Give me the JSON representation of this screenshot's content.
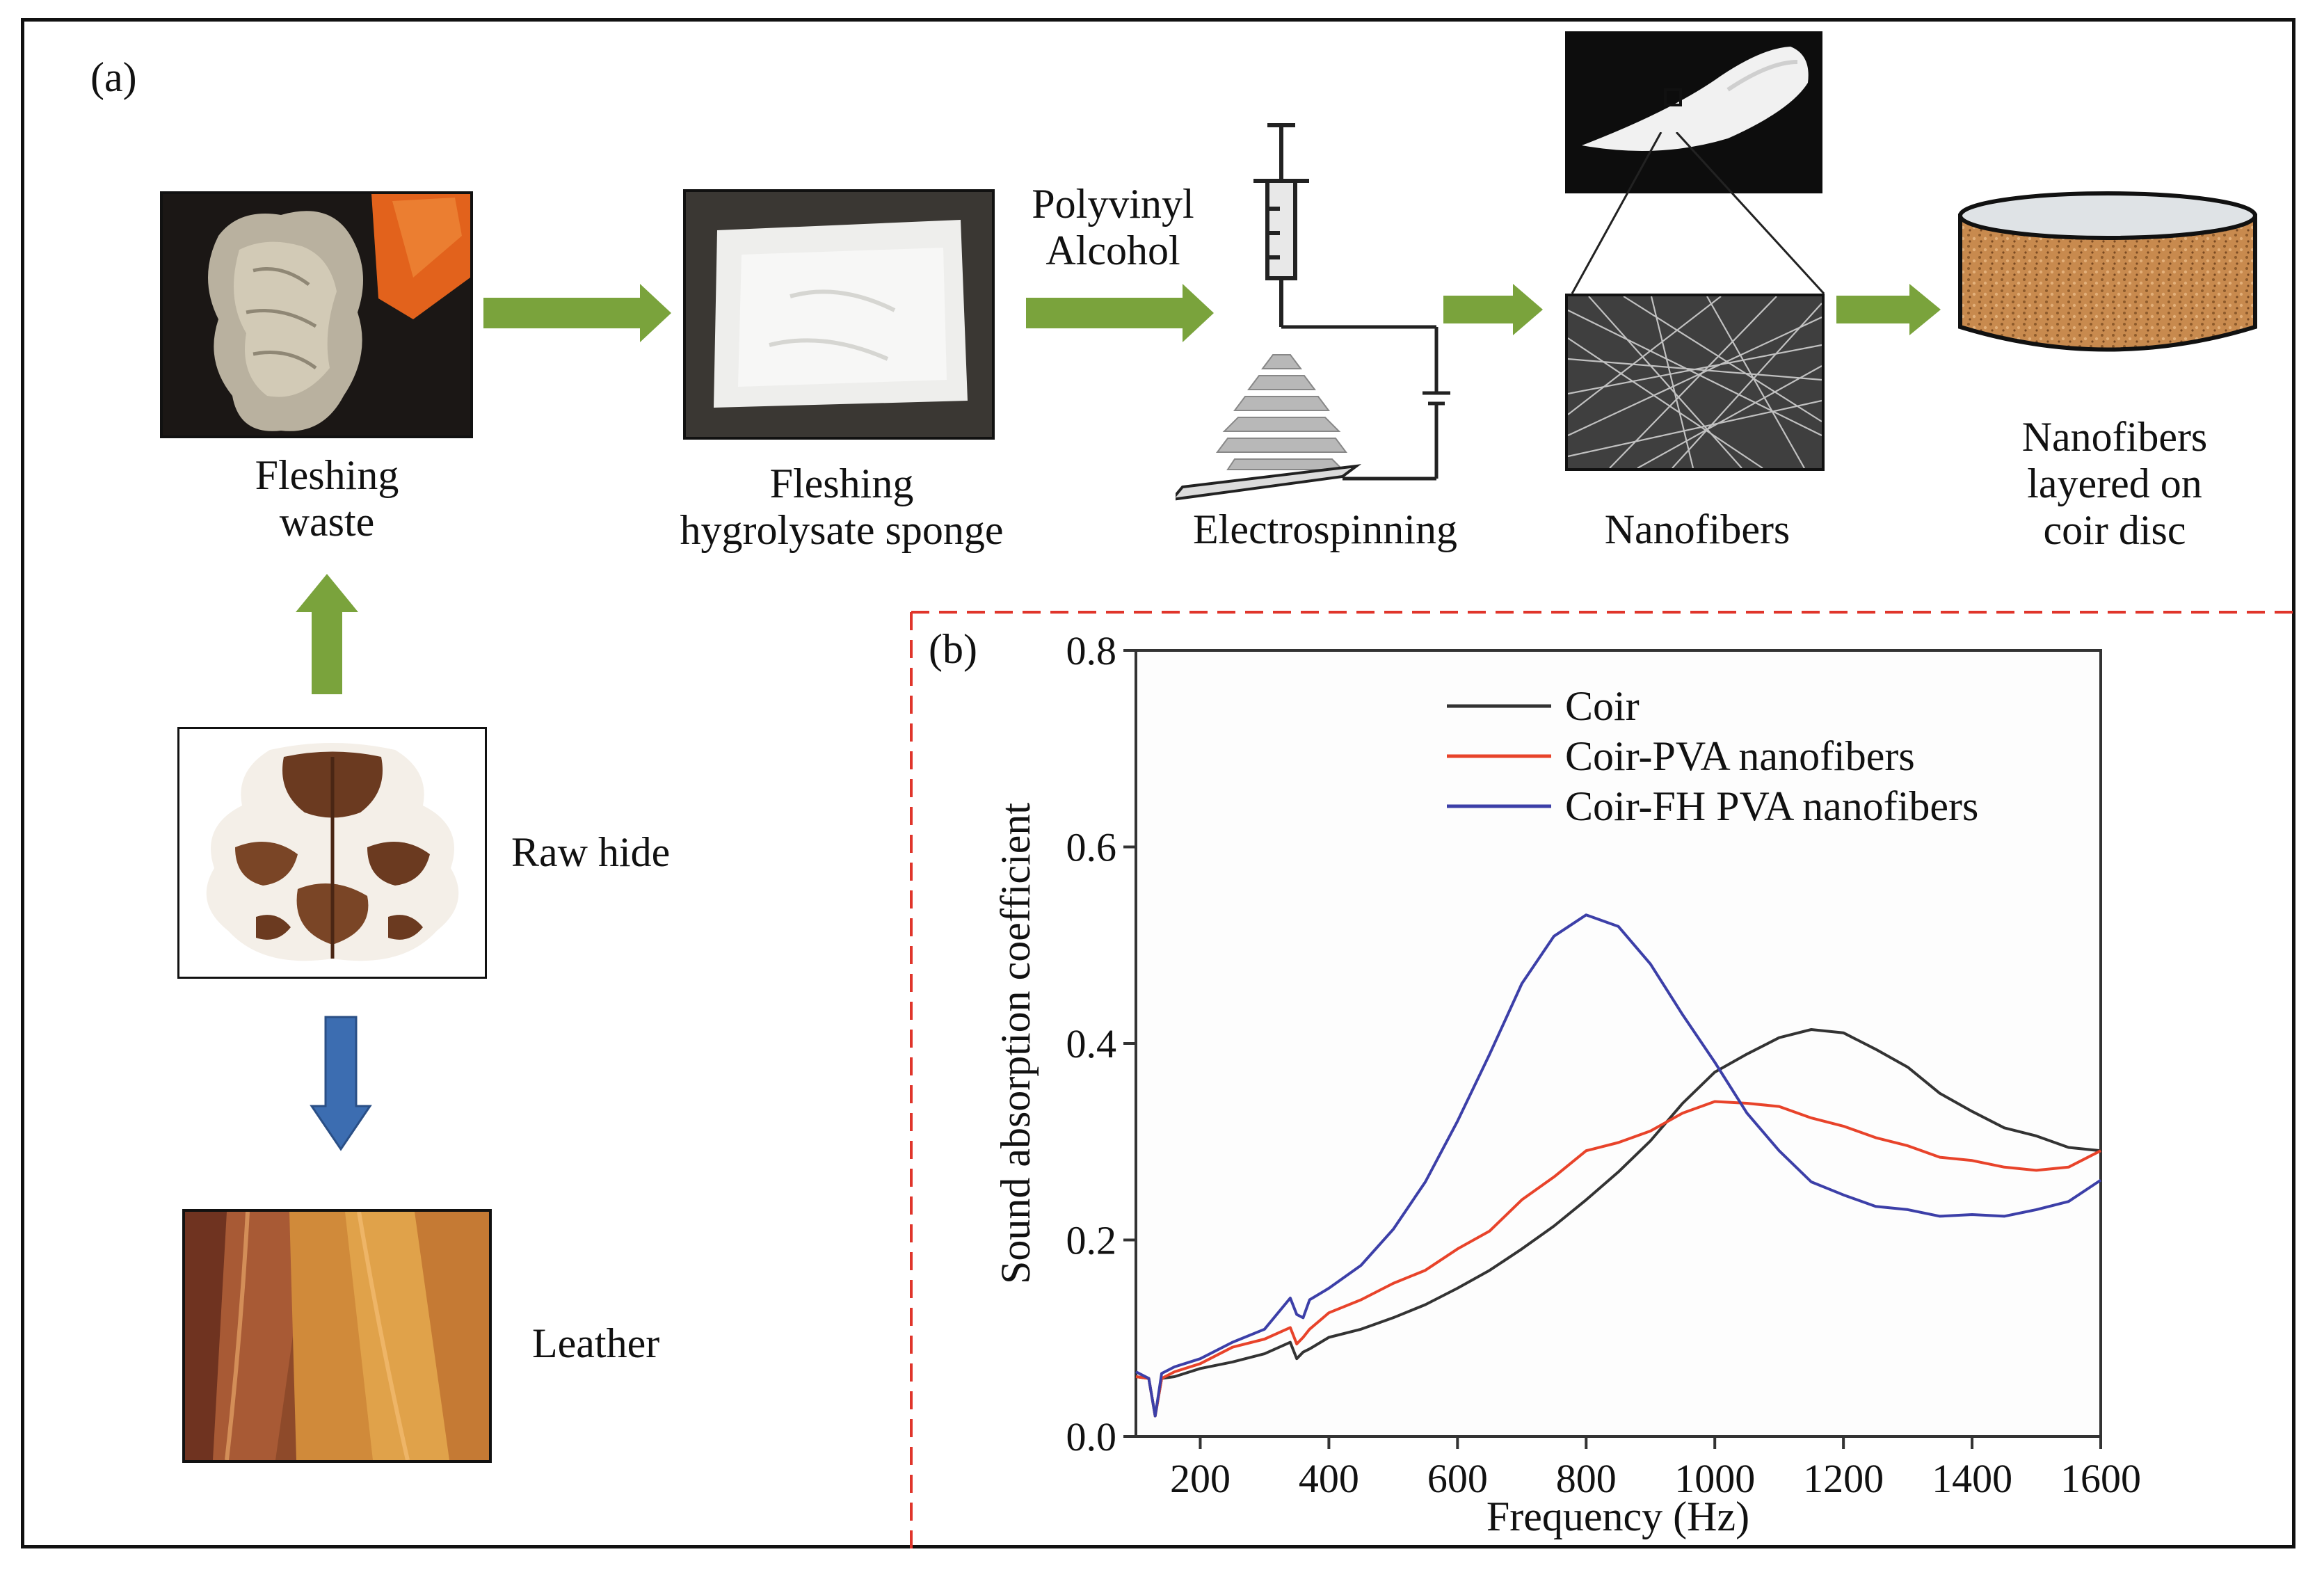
{
  "panel_a": {
    "label": "(a)",
    "fleshing_waste": {
      "line1": "Fleshing",
      "line2": "waste"
    },
    "sponge": {
      "line1": "Fleshing",
      "line2": "hygrolysate sponge"
    },
    "pva": {
      "line1": "Polyvinyl",
      "line2": "Alcohol"
    },
    "electrospinning": "Electrospinning",
    "nanofibers": "Nanofibers",
    "disc": {
      "line1": "Nanofibers",
      "line2": "layered on",
      "line3": "coir disc"
    },
    "raw_hide": "Raw hide",
    "leather": "Leather",
    "colors": {
      "process_arrow": "#7aa33c",
      "leather_arrow": "#3c6db1",
      "dashed_border": "#e0352b"
    }
  },
  "panel_b": {
    "label": "(b)"
  },
  "chart_data": {
    "type": "line",
    "title": "",
    "xlabel": "Frequency (Hz)",
    "ylabel": "Sound absorption coefficient",
    "xlim": [
      100,
      1600
    ],
    "ylim": [
      0.0,
      0.8
    ],
    "xticks": [
      200,
      400,
      600,
      800,
      1000,
      1200,
      1400,
      1600
    ],
    "yticks": [
      0.0,
      0.2,
      0.4,
      0.6,
      0.8
    ],
    "ytick_labels": [
      "0.0",
      "0.2",
      "0.4",
      "0.6",
      "0.8"
    ],
    "xtick_labels": [
      "200",
      "400",
      "600",
      "800",
      "1000",
      "1200",
      "1400",
      "1600"
    ],
    "legend_position": "top-right",
    "series": [
      {
        "name": "Coir",
        "color": "#333333",
        "x": [
          100,
          120,
          130,
          140,
          160,
          200,
          250,
          300,
          340,
          350,
          360,
          370,
          400,
          450,
          500,
          550,
          600,
          650,
          700,
          750,
          800,
          850,
          900,
          950,
          1000,
          1050,
          1100,
          1150,
          1200,
          1250,
          1300,
          1350,
          1400,
          1450,
          1500,
          1550,
          1600
        ],
        "y": [
          0.06,
          0.06,
          0.02,
          0.06,
          0.06,
          0.07,
          0.075,
          0.085,
          0.095,
          0.08,
          0.085,
          0.09,
          0.1,
          0.11,
          0.12,
          0.135,
          0.15,
          0.17,
          0.19,
          0.215,
          0.24,
          0.27,
          0.3,
          0.34,
          0.37,
          0.39,
          0.405,
          0.415,
          0.41,
          0.395,
          0.375,
          0.35,
          0.33,
          0.315,
          0.305,
          0.295,
          0.29
        ]
      },
      {
        "name": "Coir-PVA nanofibers",
        "color": "#e8432a",
        "x": [
          100,
          120,
          130,
          140,
          160,
          200,
          250,
          300,
          340,
          350,
          360,
          370,
          400,
          450,
          500,
          550,
          600,
          650,
          700,
          750,
          800,
          850,
          900,
          950,
          1000,
          1050,
          1100,
          1150,
          1200,
          1250,
          1300,
          1350,
          1400,
          1450,
          1500,
          1550,
          1600
        ],
        "y": [
          0.06,
          0.06,
          0.02,
          0.06,
          0.065,
          0.075,
          0.09,
          0.1,
          0.11,
          0.095,
          0.1,
          0.11,
          0.125,
          0.14,
          0.155,
          0.17,
          0.19,
          0.21,
          0.24,
          0.265,
          0.29,
          0.3,
          0.31,
          0.33,
          0.34,
          0.34,
          0.335,
          0.325,
          0.315,
          0.305,
          0.295,
          0.285,
          0.28,
          0.275,
          0.27,
          0.275,
          0.29
        ]
      },
      {
        "name": "Coir-FH PVA nanofibers",
        "color": "#3c3fa8",
        "x": [
          100,
          120,
          130,
          140,
          160,
          200,
          250,
          300,
          340,
          350,
          360,
          370,
          400,
          450,
          500,
          550,
          600,
          650,
          700,
          750,
          800,
          850,
          900,
          950,
          1000,
          1050,
          1100,
          1150,
          1200,
          1250,
          1300,
          1350,
          1400,
          1450,
          1500,
          1550,
          1600
        ],
        "y": [
          0.065,
          0.06,
          0.02,
          0.065,
          0.07,
          0.08,
          0.095,
          0.11,
          0.14,
          0.125,
          0.12,
          0.14,
          0.15,
          0.175,
          0.21,
          0.26,
          0.32,
          0.39,
          0.46,
          0.51,
          0.53,
          0.52,
          0.48,
          0.43,
          0.38,
          0.33,
          0.29,
          0.26,
          0.245,
          0.235,
          0.23,
          0.225,
          0.225,
          0.225,
          0.23,
          0.24,
          0.26
        ]
      }
    ]
  }
}
